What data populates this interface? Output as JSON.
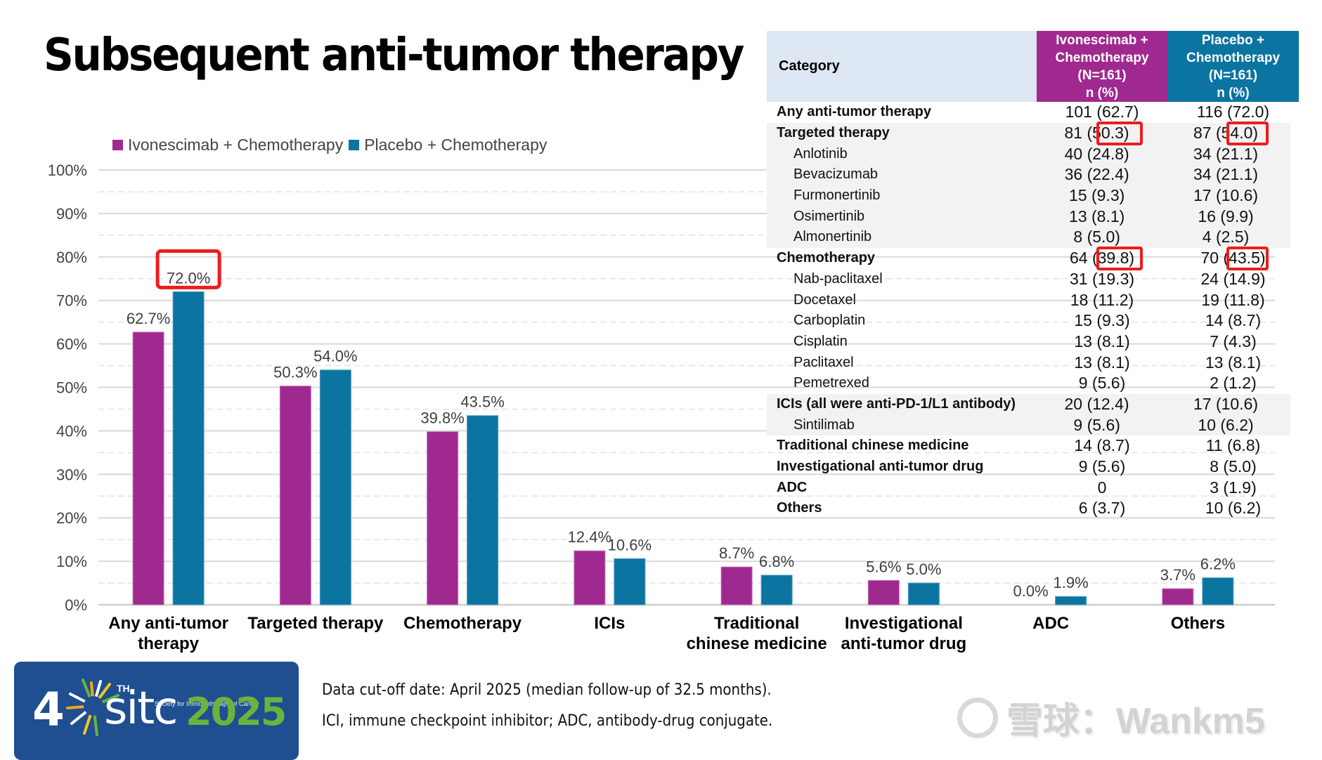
{
  "title": "Subsequent anti-tumor therapy",
  "colors": {
    "ivonescimab": "#a0298f",
    "placebo": "#0b74a0",
    "highlight": "#ee1c1c",
    "table_header_category": "#dde8f4",
    "table_shade": "#f2f2f2"
  },
  "chart_data": {
    "type": "bar",
    "title": "",
    "xlabel": "",
    "ylabel": "",
    "ylim": [
      0,
      100
    ],
    "y_ticks": [
      "0%",
      "10%",
      "20%",
      "30%",
      "40%",
      "50%",
      "60%",
      "70%",
      "80%",
      "90%",
      "100%"
    ],
    "grid": "solid major every 10%, dashed minor every 5%",
    "legend_position": "top-left",
    "categories": [
      [
        "Any anti-tumor",
        "therapy"
      ],
      [
        "Targeted therapy"
      ],
      [
        "Chemotherapy"
      ],
      [
        "ICIs"
      ],
      [
        "Traditional",
        "chinese medicine"
      ],
      [
        "Investigational",
        "anti-tumor drug"
      ],
      [
        "ADC"
      ],
      [
        "Others"
      ]
    ],
    "series": [
      {
        "name": "Ivonescimab + Chemotherapy",
        "color": "#a0298f",
        "values": [
          62.7,
          50.3,
          39.8,
          12.4,
          8.7,
          5.6,
          0.0,
          3.7
        ],
        "labels": [
          "62.7%",
          "50.3%",
          "39.8%",
          "12.4%",
          "8.7%",
          "5.6%",
          "0.0%",
          "3.7%"
        ]
      },
      {
        "name": "Placebo + Chemotherapy",
        "color": "#0b74a0",
        "values": [
          72.0,
          54.0,
          43.5,
          10.6,
          6.8,
          5.0,
          1.9,
          6.2
        ],
        "labels": [
          "72.0%",
          "54.0%",
          "43.5%",
          "10.6%",
          "6.8%",
          "5.0%",
          "1.9%",
          "6.2%"
        ]
      }
    ],
    "highlighted_labels": [
      {
        "series": 1,
        "index": 0
      }
    ]
  },
  "table": {
    "header": {
      "category": "Category",
      "col1": [
        "Ivonescimab +",
        "Chemotherapy",
        "(N=161)",
        "n (%)"
      ],
      "col2": [
        "Placebo +",
        "Chemotherapy",
        "(N=161)",
        "n (%)"
      ]
    },
    "rows": [
      {
        "label": "Any anti-tumor therapy",
        "level": "main",
        "shade": false,
        "ivo": "101 (62.7)",
        "pla": "116 (72.0)"
      },
      {
        "label": "Targeted therapy",
        "level": "main",
        "shade": true,
        "ivo": "81 (50.3)",
        "pla": "87 (54.0)",
        "highlight": true
      },
      {
        "label": "Anlotinib",
        "level": "sub",
        "shade": true,
        "ivo": "40 (24.8)",
        "pla": "34 (21.1)"
      },
      {
        "label": "Bevacizumab",
        "level": "sub",
        "shade": true,
        "ivo": "36 (22.4)",
        "pla": "34 (21.1)"
      },
      {
        "label": "Furmonertinib",
        "level": "sub",
        "shade": true,
        "ivo": "15 (9.3)",
        "pla": "17 (10.6)"
      },
      {
        "label": "Osimertinib",
        "level": "sub",
        "shade": true,
        "ivo": "13 (8.1)",
        "pla": "16 (9.9)"
      },
      {
        "label": "Almonertinib",
        "level": "sub",
        "shade": true,
        "ivo": "8 (5.0)",
        "pla": "4 (2.5)"
      },
      {
        "label": "Chemotherapy",
        "level": "main",
        "shade": false,
        "ivo": "64 (39.8)",
        "pla": "70 (43.5)",
        "highlight": true
      },
      {
        "label": "Nab-paclitaxel",
        "level": "sub",
        "shade": false,
        "ivo": "31 (19.3)",
        "pla": "24 (14.9)"
      },
      {
        "label": "Docetaxel",
        "level": "sub",
        "shade": false,
        "ivo": "18 (11.2)",
        "pla": "19 (11.8)"
      },
      {
        "label": "Carboplatin",
        "level": "sub",
        "shade": false,
        "ivo": "15 (9.3)",
        "pla": "14 (8.7)"
      },
      {
        "label": "Cisplatin",
        "level": "sub",
        "shade": false,
        "ivo": "13 (8.1)",
        "pla": "7 (4.3)"
      },
      {
        "label": "Paclitaxel",
        "level": "sub",
        "shade": false,
        "ivo": "13 (8.1)",
        "pla": "13 (8.1)"
      },
      {
        "label": "Pemetrexed",
        "level": "sub",
        "shade": false,
        "ivo": "9 (5.6)",
        "pla": "2 (1.2)"
      },
      {
        "label": "ICIs (all were anti-PD-1/L1 antibody)",
        "level": "main",
        "shade": true,
        "ivo": "20 (12.4)",
        "pla": "17 (10.6)"
      },
      {
        "label": "Sintilimab",
        "level": "sub",
        "shade": true,
        "ivo": "9 (5.6)",
        "pla": "10 (6.2)"
      },
      {
        "label": "Traditional chinese medicine",
        "level": "main",
        "shade": false,
        "ivo": "14 (8.7)",
        "pla": "11 (6.8)"
      },
      {
        "label": "Investigational anti-tumor drug",
        "level": "main",
        "shade": false,
        "ivo": "9 (5.6)",
        "pla": "8 (5.0)"
      },
      {
        "label": "ADC",
        "level": "main",
        "shade": false,
        "ivo": "0",
        "pla": "3 (1.9)"
      },
      {
        "label": "Others",
        "level": "main",
        "shade": false,
        "ivo": "6 (3.7)",
        "pla": "10 (6.2)"
      }
    ]
  },
  "logo": {
    "ordinal": "4",
    "ordinal_suffix": "TH",
    "name": "sitc",
    "year": "2025",
    "society": "Society for Immunotherapy of Cancer"
  },
  "footnotes": [
    "Data cut-off date: April 2025 (median follow-up of 32.5 months).",
    "ICI, immune checkpoint inhibitor; ADC, antibody-drug conjugate."
  ],
  "watermark": {
    "text": "雪球：Wankm5"
  }
}
